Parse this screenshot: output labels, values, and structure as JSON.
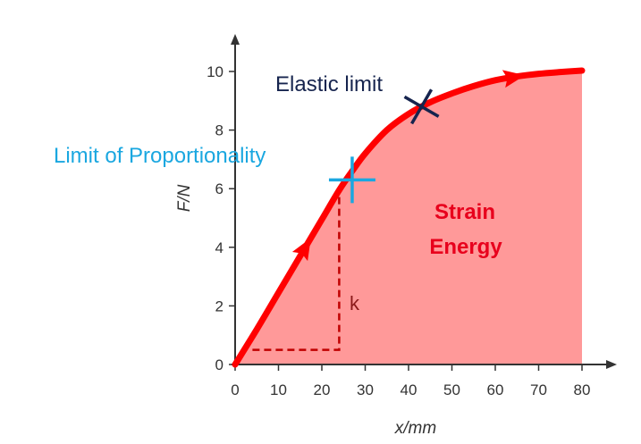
{
  "chart_data": {
    "type": "area",
    "xlabel": "x/mm",
    "ylabel": "F/N",
    "xlim": [
      0,
      82
    ],
    "ylim": [
      0,
      11
    ],
    "xticks": [
      0,
      10,
      20,
      30,
      40,
      50,
      60,
      70,
      80
    ],
    "yticks": [
      0,
      2,
      4,
      6,
      8,
      10
    ],
    "grid": false,
    "series": [
      {
        "x": [
          0,
          5,
          10,
          15,
          20,
          24,
          27,
          30,
          35,
          40,
          45,
          50,
          55,
          60,
          65,
          70,
          75,
          80
        ],
        "y": [
          0,
          1.2,
          2.45,
          3.7,
          4.95,
          5.95,
          6.6,
          7.2,
          8.0,
          8.55,
          8.95,
          9.25,
          9.5,
          9.7,
          9.83,
          9.92,
          9.98,
          10.03
        ]
      }
    ],
    "annotations": {
      "proportionality": {
        "text": "Limit of Proportionality",
        "x": 27,
        "y": 6.3,
        "color": "#1aa7e0"
      },
      "elastic": {
        "text": "Elastic limit",
        "x": 43,
        "y": 8.8,
        "color": "#16244e"
      },
      "area_label_line1": "Strain",
      "area_label_line2": "Energy",
      "gradient_label": "k",
      "gradient_triangle": {
        "x_start": 4,
        "x_end": 24,
        "y_base": 0.5,
        "y_top": 5.95
      }
    },
    "colors": {
      "curve": "#ff0000",
      "fill": "#ff9999",
      "axis": "#333333",
      "area_text": "#e8001c",
      "gradient_text": "#8b1a1a",
      "triangle": "#c00000"
    }
  }
}
